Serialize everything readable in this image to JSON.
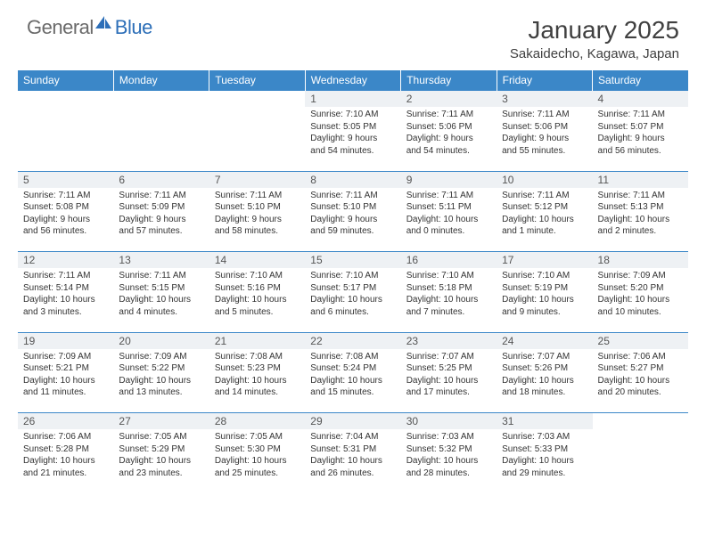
{
  "logo": {
    "general": "General",
    "blue": "Blue"
  },
  "title": "January 2025",
  "location": "Sakaidecho, Kagawa, Japan",
  "colors": {
    "header_bg": "#3b87c8",
    "header_text": "#ffffff",
    "daynum_bg": "#eef1f4",
    "border": "#3b87c8",
    "body_text": "#333333",
    "logo_gray": "#6b6b6b",
    "logo_blue": "#2d6fb8"
  },
  "typography": {
    "title_fontsize": 28,
    "location_fontsize": 15,
    "dayheader_fontsize": 12,
    "daynum_fontsize": 12,
    "body_fontsize": 10
  },
  "day_headers": [
    "Sunday",
    "Monday",
    "Tuesday",
    "Wednesday",
    "Thursday",
    "Friday",
    "Saturday"
  ],
  "weeks": [
    [
      null,
      null,
      null,
      {
        "n": "1",
        "sr": "Sunrise: 7:10 AM",
        "ss": "Sunset: 5:05 PM",
        "d1": "Daylight: 9 hours",
        "d2": "and 54 minutes."
      },
      {
        "n": "2",
        "sr": "Sunrise: 7:11 AM",
        "ss": "Sunset: 5:06 PM",
        "d1": "Daylight: 9 hours",
        "d2": "and 54 minutes."
      },
      {
        "n": "3",
        "sr": "Sunrise: 7:11 AM",
        "ss": "Sunset: 5:06 PM",
        "d1": "Daylight: 9 hours",
        "d2": "and 55 minutes."
      },
      {
        "n": "4",
        "sr": "Sunrise: 7:11 AM",
        "ss": "Sunset: 5:07 PM",
        "d1": "Daylight: 9 hours",
        "d2": "and 56 minutes."
      }
    ],
    [
      {
        "n": "5",
        "sr": "Sunrise: 7:11 AM",
        "ss": "Sunset: 5:08 PM",
        "d1": "Daylight: 9 hours",
        "d2": "and 56 minutes."
      },
      {
        "n": "6",
        "sr": "Sunrise: 7:11 AM",
        "ss": "Sunset: 5:09 PM",
        "d1": "Daylight: 9 hours",
        "d2": "and 57 minutes."
      },
      {
        "n": "7",
        "sr": "Sunrise: 7:11 AM",
        "ss": "Sunset: 5:10 PM",
        "d1": "Daylight: 9 hours",
        "d2": "and 58 minutes."
      },
      {
        "n": "8",
        "sr": "Sunrise: 7:11 AM",
        "ss": "Sunset: 5:10 PM",
        "d1": "Daylight: 9 hours",
        "d2": "and 59 minutes."
      },
      {
        "n": "9",
        "sr": "Sunrise: 7:11 AM",
        "ss": "Sunset: 5:11 PM",
        "d1": "Daylight: 10 hours",
        "d2": "and 0 minutes."
      },
      {
        "n": "10",
        "sr": "Sunrise: 7:11 AM",
        "ss": "Sunset: 5:12 PM",
        "d1": "Daylight: 10 hours",
        "d2": "and 1 minute."
      },
      {
        "n": "11",
        "sr": "Sunrise: 7:11 AM",
        "ss": "Sunset: 5:13 PM",
        "d1": "Daylight: 10 hours",
        "d2": "and 2 minutes."
      }
    ],
    [
      {
        "n": "12",
        "sr": "Sunrise: 7:11 AM",
        "ss": "Sunset: 5:14 PM",
        "d1": "Daylight: 10 hours",
        "d2": "and 3 minutes."
      },
      {
        "n": "13",
        "sr": "Sunrise: 7:11 AM",
        "ss": "Sunset: 5:15 PM",
        "d1": "Daylight: 10 hours",
        "d2": "and 4 minutes."
      },
      {
        "n": "14",
        "sr": "Sunrise: 7:10 AM",
        "ss": "Sunset: 5:16 PM",
        "d1": "Daylight: 10 hours",
        "d2": "and 5 minutes."
      },
      {
        "n": "15",
        "sr": "Sunrise: 7:10 AM",
        "ss": "Sunset: 5:17 PM",
        "d1": "Daylight: 10 hours",
        "d2": "and 6 minutes."
      },
      {
        "n": "16",
        "sr": "Sunrise: 7:10 AM",
        "ss": "Sunset: 5:18 PM",
        "d1": "Daylight: 10 hours",
        "d2": "and 7 minutes."
      },
      {
        "n": "17",
        "sr": "Sunrise: 7:10 AM",
        "ss": "Sunset: 5:19 PM",
        "d1": "Daylight: 10 hours",
        "d2": "and 9 minutes."
      },
      {
        "n": "18",
        "sr": "Sunrise: 7:09 AM",
        "ss": "Sunset: 5:20 PM",
        "d1": "Daylight: 10 hours",
        "d2": "and 10 minutes."
      }
    ],
    [
      {
        "n": "19",
        "sr": "Sunrise: 7:09 AM",
        "ss": "Sunset: 5:21 PM",
        "d1": "Daylight: 10 hours",
        "d2": "and 11 minutes."
      },
      {
        "n": "20",
        "sr": "Sunrise: 7:09 AM",
        "ss": "Sunset: 5:22 PM",
        "d1": "Daylight: 10 hours",
        "d2": "and 13 minutes."
      },
      {
        "n": "21",
        "sr": "Sunrise: 7:08 AM",
        "ss": "Sunset: 5:23 PM",
        "d1": "Daylight: 10 hours",
        "d2": "and 14 minutes."
      },
      {
        "n": "22",
        "sr": "Sunrise: 7:08 AM",
        "ss": "Sunset: 5:24 PM",
        "d1": "Daylight: 10 hours",
        "d2": "and 15 minutes."
      },
      {
        "n": "23",
        "sr": "Sunrise: 7:07 AM",
        "ss": "Sunset: 5:25 PM",
        "d1": "Daylight: 10 hours",
        "d2": "and 17 minutes."
      },
      {
        "n": "24",
        "sr": "Sunrise: 7:07 AM",
        "ss": "Sunset: 5:26 PM",
        "d1": "Daylight: 10 hours",
        "d2": "and 18 minutes."
      },
      {
        "n": "25",
        "sr": "Sunrise: 7:06 AM",
        "ss": "Sunset: 5:27 PM",
        "d1": "Daylight: 10 hours",
        "d2": "and 20 minutes."
      }
    ],
    [
      {
        "n": "26",
        "sr": "Sunrise: 7:06 AM",
        "ss": "Sunset: 5:28 PM",
        "d1": "Daylight: 10 hours",
        "d2": "and 21 minutes."
      },
      {
        "n": "27",
        "sr": "Sunrise: 7:05 AM",
        "ss": "Sunset: 5:29 PM",
        "d1": "Daylight: 10 hours",
        "d2": "and 23 minutes."
      },
      {
        "n": "28",
        "sr": "Sunrise: 7:05 AM",
        "ss": "Sunset: 5:30 PM",
        "d1": "Daylight: 10 hours",
        "d2": "and 25 minutes."
      },
      {
        "n": "29",
        "sr": "Sunrise: 7:04 AM",
        "ss": "Sunset: 5:31 PM",
        "d1": "Daylight: 10 hours",
        "d2": "and 26 minutes."
      },
      {
        "n": "30",
        "sr": "Sunrise: 7:03 AM",
        "ss": "Sunset: 5:32 PM",
        "d1": "Daylight: 10 hours",
        "d2": "and 28 minutes."
      },
      {
        "n": "31",
        "sr": "Sunrise: 7:03 AM",
        "ss": "Sunset: 5:33 PM",
        "d1": "Daylight: 10 hours",
        "d2": "and 29 minutes."
      },
      null
    ]
  ]
}
